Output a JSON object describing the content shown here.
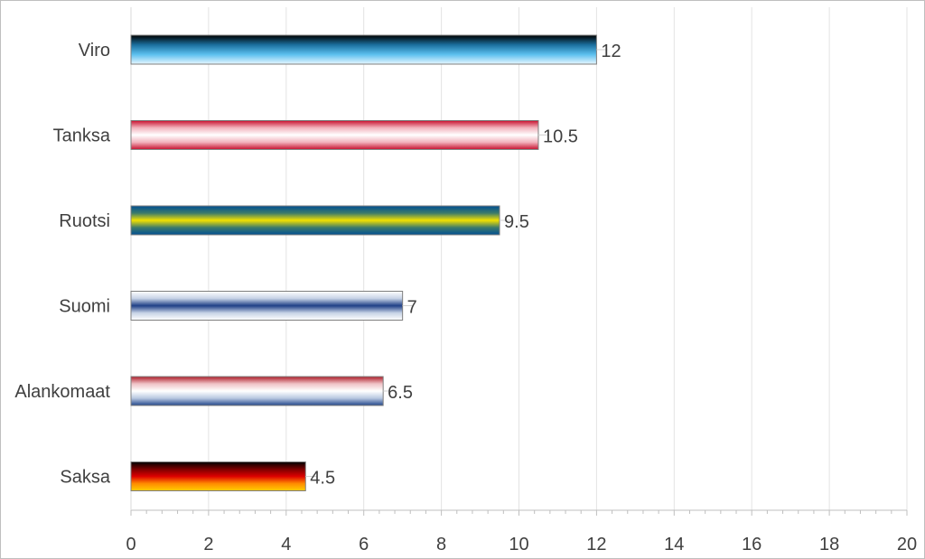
{
  "chart_data": {
    "type": "bar",
    "orientation": "horizontal",
    "categories": [
      "Viro",
      "Tanksa",
      "Ruotsi",
      "Suomi",
      "Alankomaat",
      "Saksa"
    ],
    "values": [
      12,
      10.5,
      9.5,
      7,
      6.5,
      4.5
    ],
    "value_labels": [
      "12",
      "10.5",
      "9.5",
      "7",
      "6.5",
      "4.5"
    ],
    "xlim": [
      0,
      20
    ],
    "x_ticks": [
      "0",
      "2",
      "4",
      "6",
      "8",
      "10",
      "12",
      "14",
      "16",
      "18",
      "20"
    ],
    "title": "",
    "xlabel": "",
    "ylabel": "",
    "grid": true,
    "legend": "none",
    "bar_fills": [
      {
        "name": "Viro",
        "stops": [
          "#000000",
          "#1b6f9e",
          "#5cc0ef",
          "#e8f7ff"
        ]
      },
      {
        "name": "Tanksa",
        "stops": [
          "#c8102e",
          "#f2b3bd",
          "#ffffff",
          "#f2b3bd",
          "#c8102e"
        ]
      },
      {
        "name": "Ruotsi",
        "stops": [
          "#004f93",
          "#3c7a6b",
          "#f2e100",
          "#3c7a6b",
          "#004f93"
        ]
      },
      {
        "name": "Suomi",
        "stops": [
          "#ffffff",
          "#c7d3e6",
          "#1f3f86",
          "#c7d3e6",
          "#ffffff"
        ]
      },
      {
        "name": "Alankomaat",
        "stops": [
          "#ae1c28",
          "#efc2c7",
          "#ffffff",
          "#b8c7e0",
          "#21468b"
        ]
      },
      {
        "name": "Saksa",
        "stops": [
          "#000000",
          "#7a0000",
          "#dd0000",
          "#ff8c00",
          "#ffce00"
        ]
      }
    ]
  }
}
